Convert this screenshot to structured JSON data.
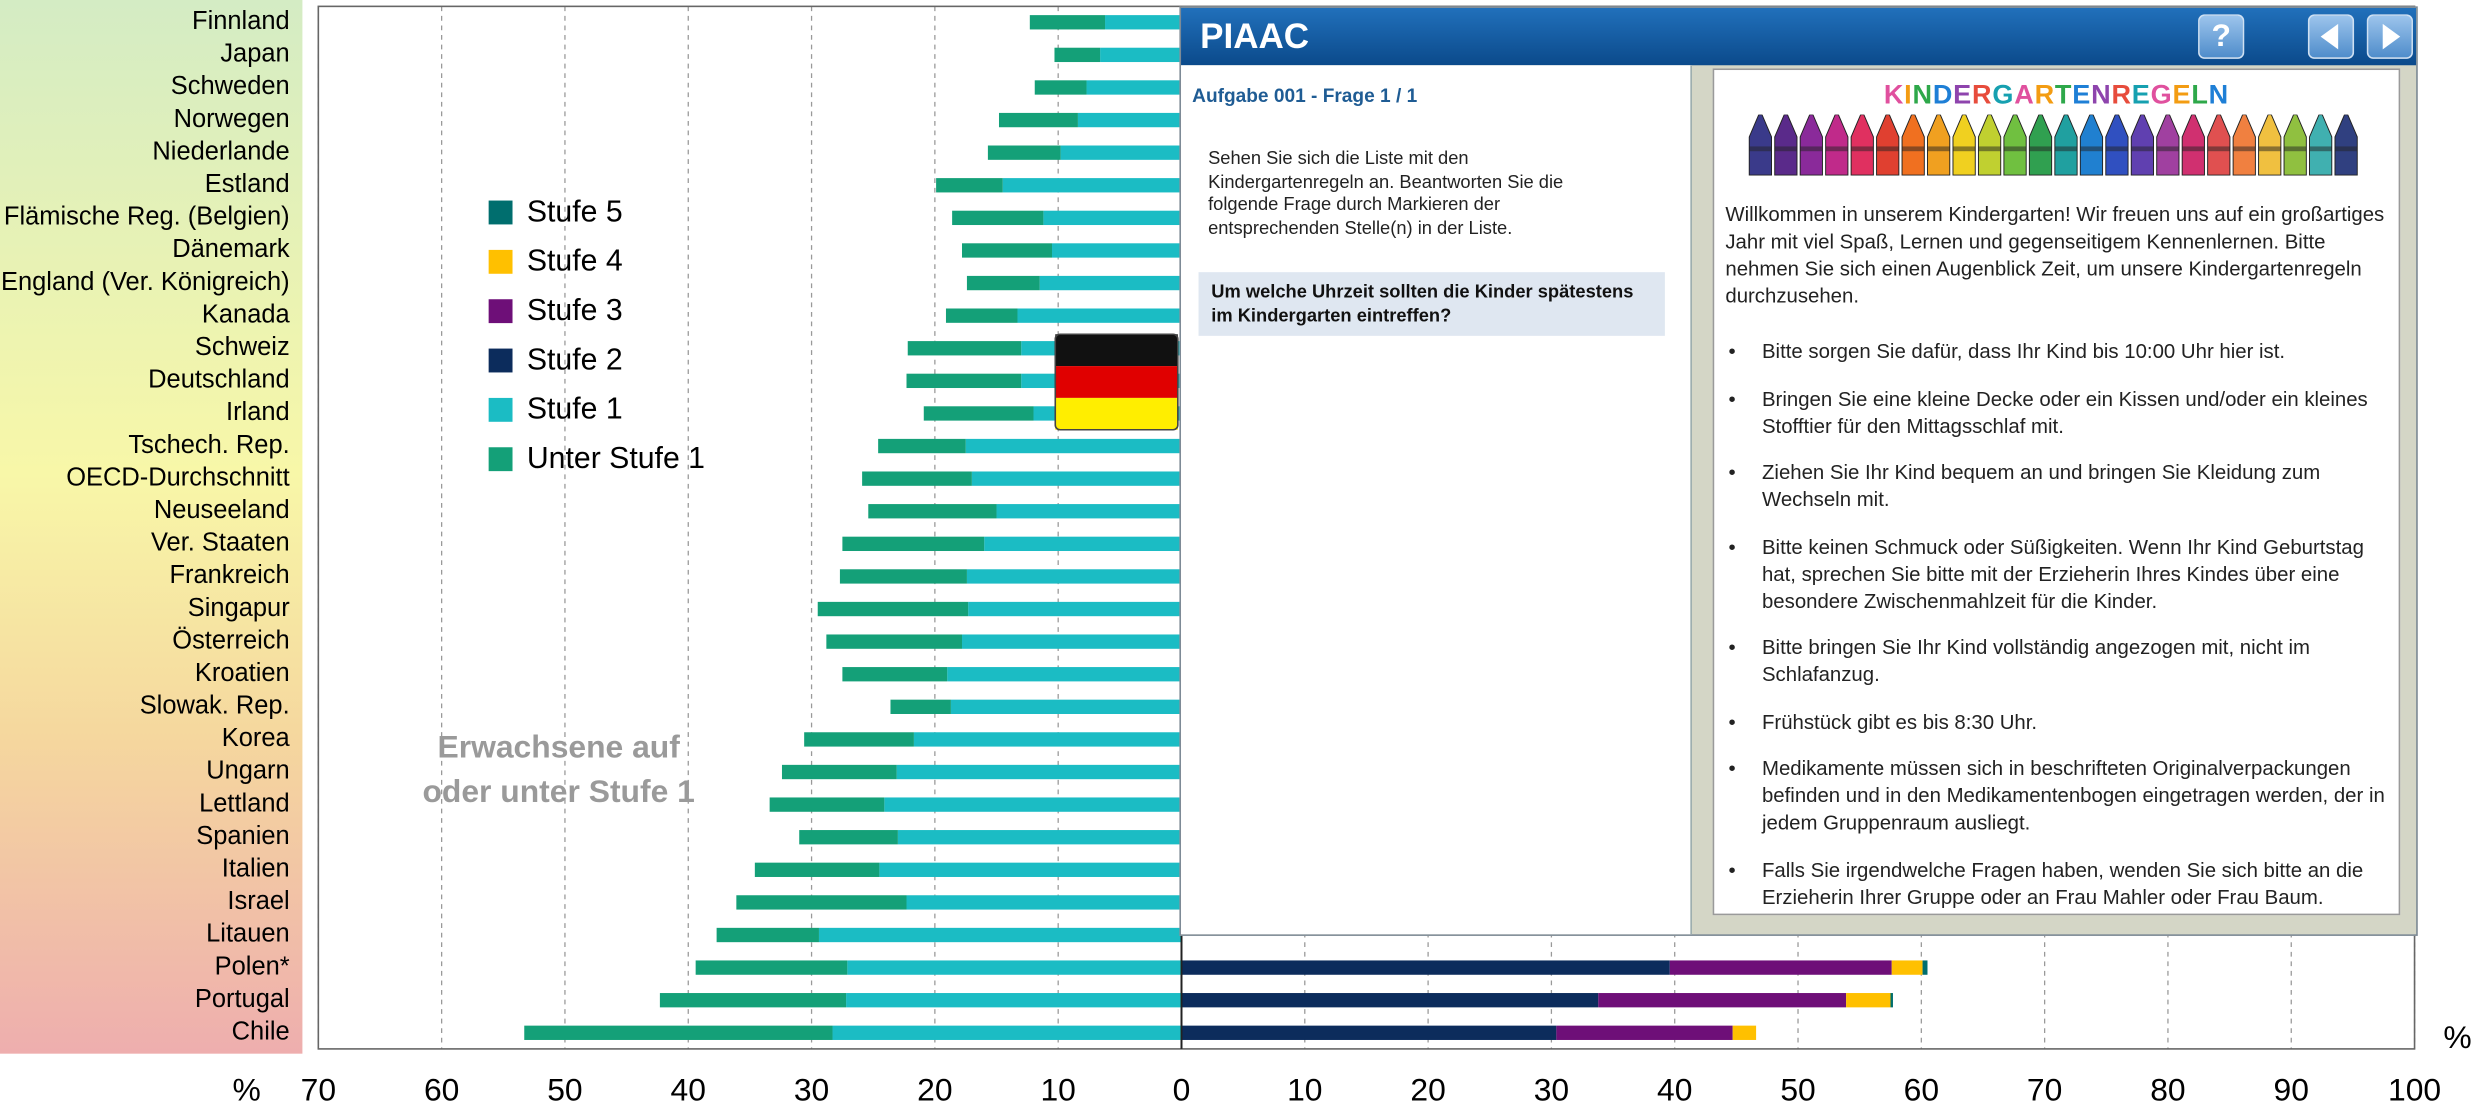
{
  "chart_data": {
    "type": "diverging-stacked-bar",
    "xlabel": "%",
    "categories": [
      "Finnland",
      "Japan",
      "Schweden",
      "Norwegen",
      "Niederlande",
      "Estland",
      "Flämische Reg. (Belgien)",
      "Dänemark",
      "England (Ver. Königreich)",
      "Kanada",
      "Schweiz",
      "Deutschland",
      "Irland",
      "Tschech. Rep.",
      "OECD-Durchschnitt",
      "Neuseeland",
      "Ver. Staaten",
      "Frankreich",
      "Singapur",
      "Österreich",
      "Kroatien",
      "Slowak. Rep.",
      "Korea",
      "Ungarn",
      "Lettland",
      "Spanien",
      "Italien",
      "Israel",
      "Litauen",
      "Polen*",
      "Portugal",
      "Chile"
    ],
    "series": [
      {
        "name": "Stufe 5",
        "color": "#006e6e",
        "values": [
          null,
          null,
          null,
          null,
          null,
          null,
          null,
          null,
          null,
          null,
          null,
          null,
          null,
          null,
          null,
          null,
          null,
          null,
          null,
          null,
          null,
          null,
          null,
          null,
          null,
          null,
          null,
          null,
          null,
          0.4,
          0.2,
          0
        ]
      },
      {
        "name": "Stufe 4",
        "color": "#ffc000",
        "values": [
          null,
          null,
          null,
          null,
          null,
          null,
          null,
          null,
          null,
          null,
          null,
          null,
          null,
          null,
          null,
          null,
          null,
          null,
          null,
          null,
          null,
          null,
          null,
          null,
          null,
          null,
          null,
          null,
          null,
          2.5,
          3.6,
          1.9
        ]
      },
      {
        "name": "Stufe 3",
        "color": "#6e0f78",
        "values": [
          null,
          null,
          null,
          null,
          null,
          null,
          null,
          null,
          null,
          null,
          null,
          null,
          null,
          null,
          null,
          null,
          null,
          null,
          null,
          null,
          null,
          null,
          null,
          null,
          null,
          null,
          null,
          null,
          null,
          18.0,
          20.1,
          14.3
        ]
      },
      {
        "name": "Stufe 2",
        "color": "#0c2c5c",
        "values": [
          null,
          null,
          null,
          null,
          null,
          null,
          null,
          null,
          null,
          null,
          null,
          null,
          null,
          null,
          null,
          null,
          null,
          null,
          null,
          null,
          null,
          null,
          null,
          null,
          null,
          null,
          null,
          null,
          null,
          39.6,
          33.8,
          30.4
        ]
      },
      {
        "name": "Stufe 1",
        "color": "#1bbcc4",
        "values": [
          -6.2,
          -6.6,
          -7.7,
          -8.4,
          -9.8,
          -14.5,
          -11.2,
          -10.5,
          -11.5,
          -13.3,
          -13.0,
          -13.0,
          -12.0,
          -17.5,
          -17.0,
          -15.0,
          -16.0,
          -17.4,
          -17.3,
          -17.8,
          -19.0,
          -18.7,
          -21.7,
          -23.1,
          -24.1,
          -23.0,
          -24.5,
          -22.3,
          -29.4,
          -27.1,
          -27.2,
          -28.3
        ]
      },
      {
        "name": "Unter Stufe 1",
        "color": "#14a078",
        "values": [
          -6.1,
          -3.7,
          -4.2,
          -6.4,
          -5.9,
          -5.4,
          -7.4,
          -7.3,
          -5.9,
          -5.8,
          -9.2,
          -9.3,
          -8.9,
          -7.1,
          -8.9,
          -10.4,
          -11.5,
          -10.3,
          -12.2,
          -11.0,
          -8.5,
          -4.9,
          -8.9,
          -9.3,
          -9.3,
          -8.0,
          -10.1,
          -13.8,
          -8.3,
          -12.3,
          -15.1,
          -25.0
        ]
      }
    ],
    "xlim": [
      -70,
      100
    ],
    "xticks": [
      {
        "value": -70,
        "label": "70"
      },
      {
        "value": -60,
        "label": "60"
      },
      {
        "value": -50,
        "label": "50"
      },
      {
        "value": -40,
        "label": "40"
      },
      {
        "value": -30,
        "label": "30"
      },
      {
        "value": -20,
        "label": "20"
      },
      {
        "value": -10,
        "label": "10"
      },
      0,
      10,
      20,
      30,
      40,
      50,
      60,
      70,
      80,
      90,
      100
    ],
    "grid": true,
    "annotation": "Erwachsene auf oder unter Stufe 1"
  },
  "piaac_panel": {
    "title": "PIAAC",
    "help_button": "?",
    "task_label": "Aufgabe 001 - Frage 1 / 1",
    "instructions": "Sehen Sie sich die Liste mit den Kindergartenregeln an. Beantworten Sie die folgende Frage durch Markieren der entsprechenden Stelle(n) in der Liste.",
    "question": "Um welche Uhrzeit sollten die Kinder spätestens im Kindergarten eintreffen?",
    "document": {
      "title": "KINDERGARTENREGELN",
      "intro": "Willkommen in unserem Kindergarten! Wir freuen uns auf ein großartiges Jahr mit viel Spaß, Lernen und gegenseitigem Kennenlernen. Bitte nehmen Sie sich einen Augenblick Zeit, um unsere Kindergartenregeln durchzusehen.",
      "rules": [
        "Bitte sorgen Sie dafür, dass Ihr Kind bis 10:00 Uhr hier ist.",
        "Bringen Sie eine kleine Decke oder ein Kissen und/oder ein kleines Stofftier für den Mittagsschlaf mit.",
        "Ziehen Sie Ihr Kind bequem an und bringen Sie Kleidung zum Wechseln mit.",
        "Bitte keinen Schmuck oder Süßigkeiten. Wenn Ihr Kind Geburtstag hat, sprechen Sie bitte mit der Erzieherin Ihres Kindes über eine besondere Zwischenmahlzeit für die Kinder.",
        "Bitte bringen Sie Ihr Kind vollständig angezogen mit, nicht im Schlafanzug.",
        "Frühstück gibt es bis 8:30 Uhr.",
        "Medikamente müssen sich in beschrifteten Originalverpackungen befinden und in den Medikamentenbogen eingetragen werden, der in jedem Gruppenraum ausliegt.",
        "Falls Sie irgendwelche Fragen haben, wenden Sie sich bitte an die Erzieherin Ihrer Gruppe oder an Frau Mahler oder Frau Baum."
      ]
    }
  }
}
